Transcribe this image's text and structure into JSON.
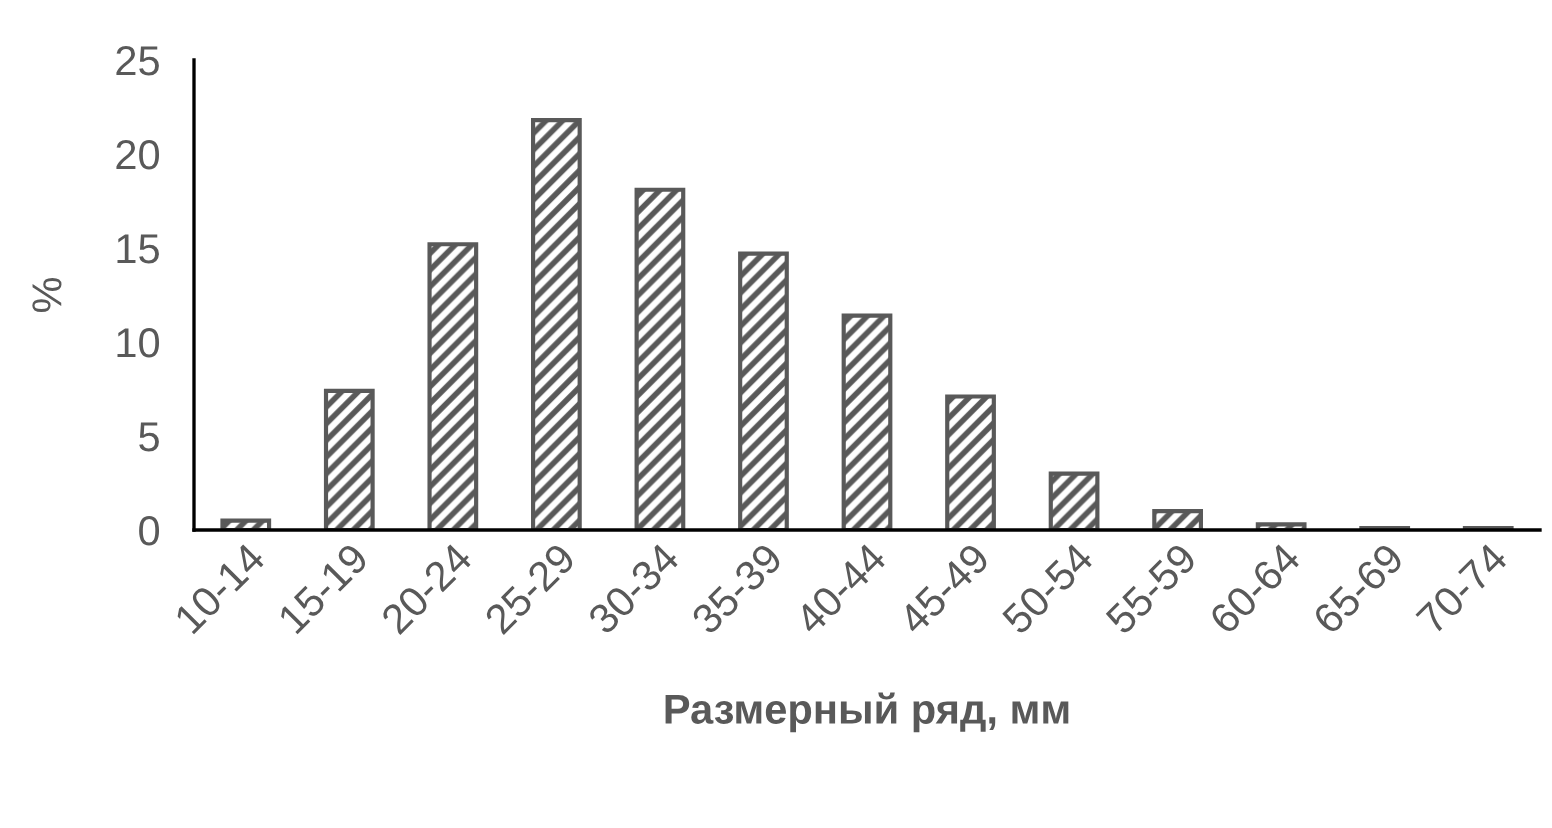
{
  "chart_data": {
    "type": "bar",
    "categories": [
      "10-14",
      "15-19",
      "20-24",
      "25-29",
      "30-34",
      "35-39",
      "40-44",
      "45-49",
      "50-54",
      "55-59",
      "60-64",
      "65-69",
      "70-74"
    ],
    "values": [
      0.5,
      7.4,
      15.2,
      21.8,
      18.1,
      14.7,
      11.4,
      7.1,
      3.0,
      1.0,
      0.3,
      0.1,
      0.1
    ],
    "color": "#595959",
    "ylim": [
      0,
      25
    ],
    "yticks": [
      0,
      5,
      10,
      15,
      20,
      25
    ],
    "ylabel": "%",
    "xlabel": "Размерный ряд, мм",
    "grid": false,
    "legend": false
  }
}
